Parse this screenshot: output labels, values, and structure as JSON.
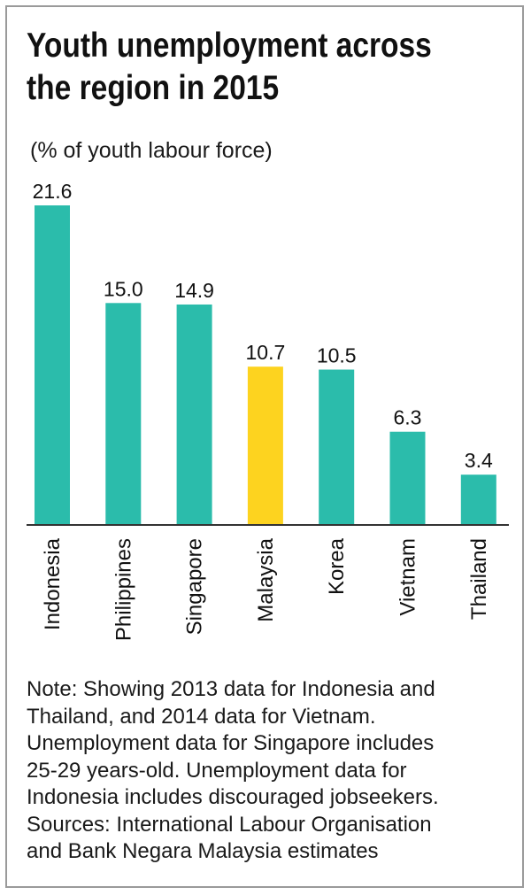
{
  "title_lines": [
    "Youth unemployment across",
    "the region in 2015"
  ],
  "subtitle": "(% of youth labour force)",
  "colors": {
    "bar": "#2bbcab",
    "highlight": "#fdd31f",
    "axis": "#333333",
    "text": "#111111"
  },
  "chart_data": {
    "type": "bar",
    "categories": [
      "Indonesia",
      "Philippines",
      "Singapore",
      "Malaysia",
      "Korea",
      "Vietnam",
      "Thailand"
    ],
    "values": [
      21.6,
      15.0,
      14.9,
      10.7,
      10.5,
      6.3,
      3.4
    ],
    "value_labels": [
      "21.6",
      "15.0",
      "14.9",
      "10.7",
      "10.5",
      "6.3",
      "3.4"
    ],
    "highlighted": "Malaysia",
    "ylim": [
      0,
      21.6
    ],
    "grid": false,
    "category_label_orientation": "vertical"
  },
  "note_lines": [
    "Note: Showing 2013 data for Indonesia and",
    "Thailand, and 2014 data for Vietnam.",
    "Unemployment data for Singapore includes",
    "25-29 years-old. Unemployment data for",
    "Indonesia includes discouraged jobseekers.",
    "Sources: International Labour Organisation",
    "and Bank Negara Malaysia estimates"
  ]
}
